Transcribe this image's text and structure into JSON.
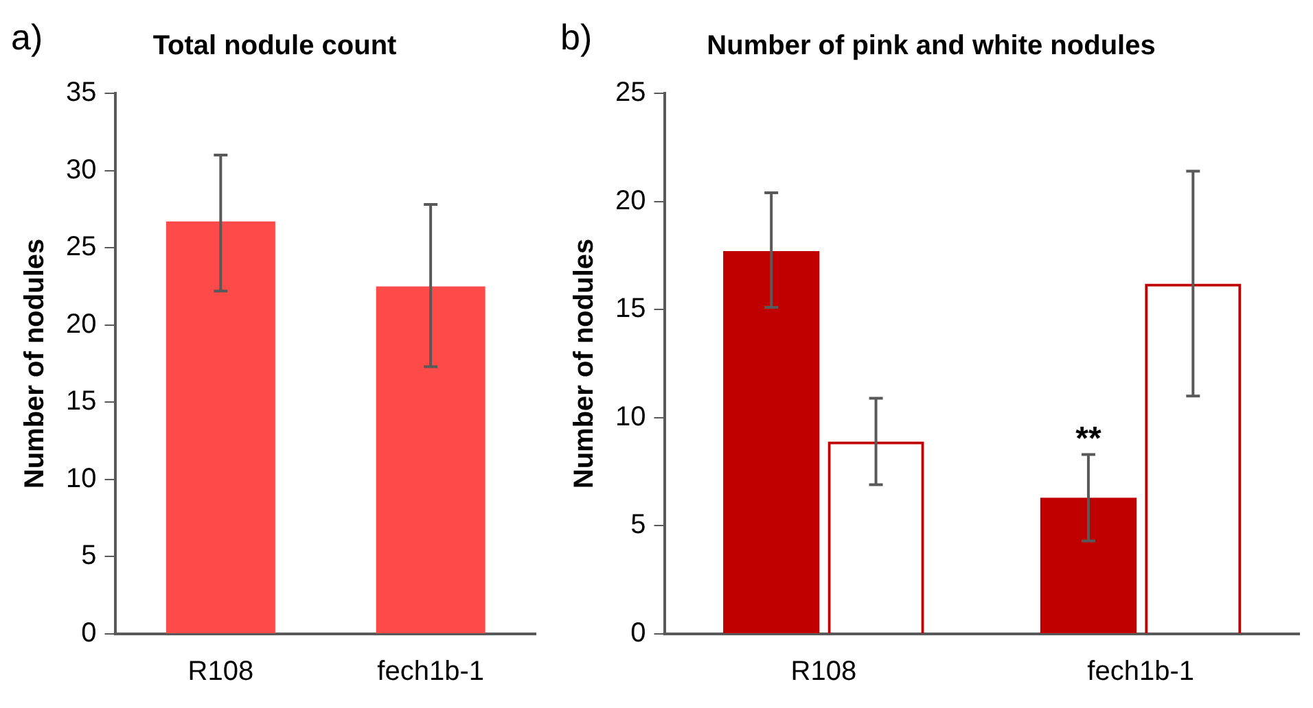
{
  "chart_data": [
    {
      "type": "bar",
      "title": "Total nodule count",
      "ylabel": "Number of nodules",
      "annotations": [
        "a)"
      ],
      "categories": [
        "R108",
        "fech1b-1"
      ],
      "values": [
        26.7,
        22.5
      ],
      "color": "#ff4a4a",
      "errors": [
        [
          22.2,
          31.0
        ],
        [
          17.3,
          27.8
        ]
      ],
      "ylim": [
        0,
        35
      ],
      "yticks": [
        0,
        5,
        10,
        15,
        20,
        25,
        30,
        35
      ],
      "grid": false,
      "legend": false
    },
    {
      "type": "bar",
      "title": "Number of pink and white nodules",
      "ylabel": "Number of nodules",
      "annotations": [
        "b)",
        {
          "text": "**",
          "x": "fech1b-1",
          "y": 9.3
        }
      ],
      "categories": [
        "R108",
        "fech1b-1"
      ],
      "series": [
        {
          "color": "#c00000",
          "values": [
            17.7,
            6.3
          ],
          "errors": [
            [
              15.1,
              20.4
            ],
            [
              4.3,
              8.3
            ]
          ]
        },
        {
          "color": "#c00000",
          "values": [
            8.9,
            16.2
          ],
          "errors": [
            [
              6.9,
              10.9
            ],
            [
              11.0,
              21.4
            ]
          ]
        }
      ],
      "ylim": [
        0,
        25
      ],
      "yticks": [
        0,
        5,
        10,
        15,
        20,
        25
      ],
      "grid": false,
      "legend": false
    }
  ]
}
